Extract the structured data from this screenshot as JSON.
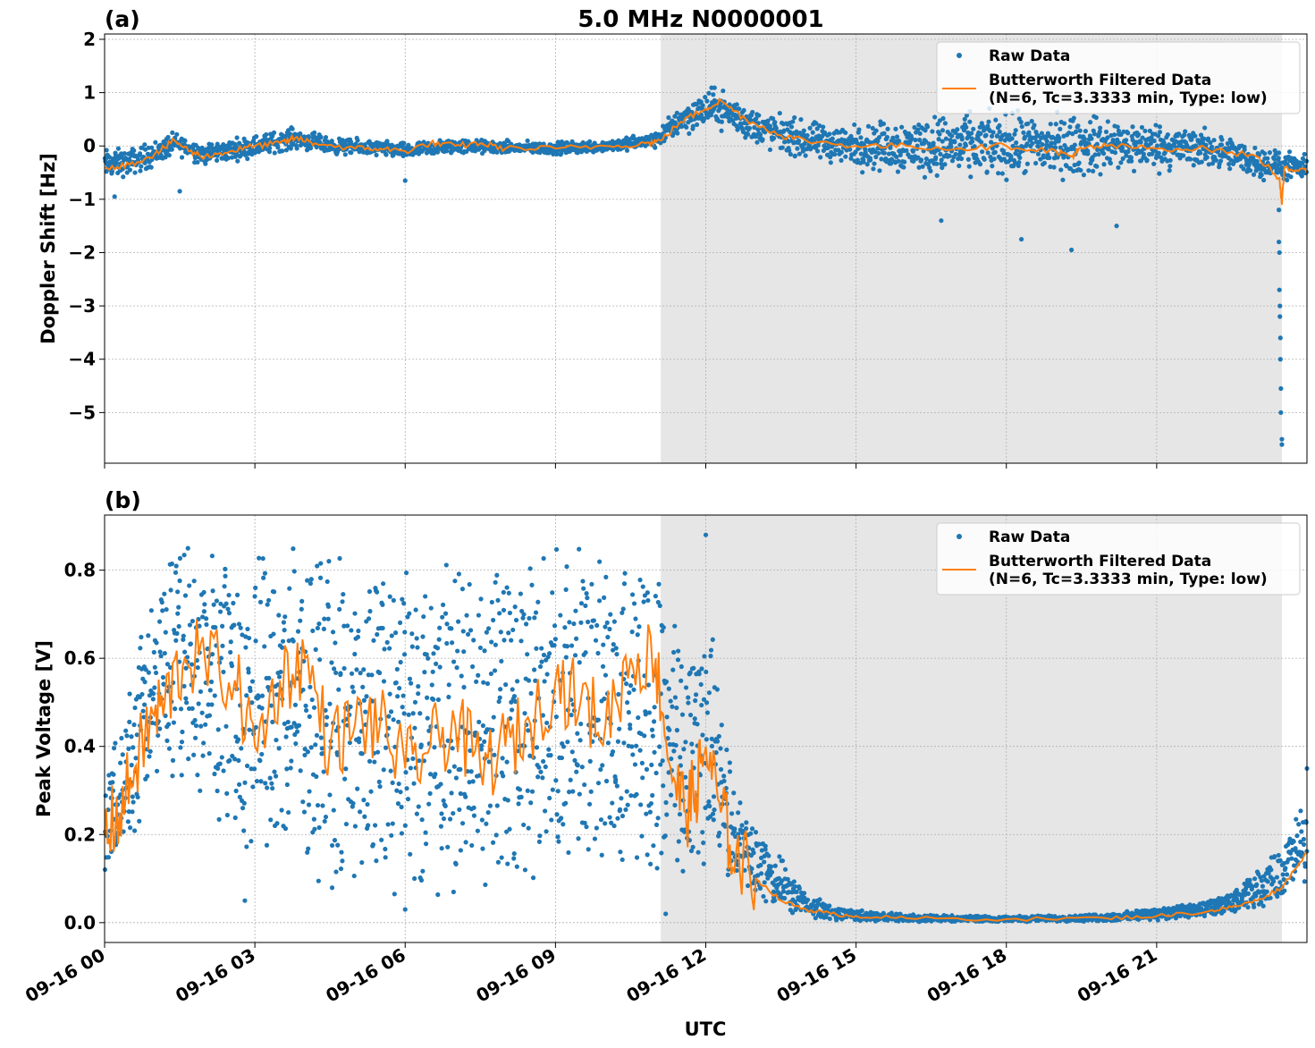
{
  "title": "5.0 MHz N0000001",
  "xlabel": "UTC",
  "colors": {
    "raw": "#1f77b4",
    "filtered": "#ff7f0e",
    "shade": "#e6e6e6",
    "grid": "#b0b0b0"
  },
  "chart_data": [
    {
      "type": "scatter",
      "panel_label": "(a)",
      "ylabel": "Doppler Shift [Hz]",
      "xlim_hours": [
        0,
        24
      ],
      "ylim": [
        -5.95,
        2.1
      ],
      "yticks": [
        -5,
        -4,
        -3,
        -2,
        -1,
        0,
        1,
        2
      ],
      "ytick_labels": [
        "−5",
        "−4",
        "−3",
        "−2",
        "−1",
        "0",
        "1",
        "2"
      ],
      "xticks_hours": [
        0,
        3,
        6,
        9,
        12,
        15,
        18,
        21
      ],
      "shaded_span_hours": [
        11.1,
        23.5
      ],
      "grid": true,
      "legend_position": "upper-right",
      "legend": [
        "Raw Data",
        "Butterworth Filtered Data",
        "(N=6, Tc=3.3333 min, Type: low)"
      ],
      "series": [
        {
          "name": "Raw Data",
          "band": [
            [
              0.0,
              -0.35,
              0.3
            ],
            [
              0.5,
              -0.3,
              0.25
            ],
            [
              1.0,
              -0.15,
              0.25
            ],
            [
              1.4,
              0.05,
              0.2
            ],
            [
              2.0,
              -0.15,
              0.2
            ],
            [
              3.0,
              0.0,
              0.2
            ],
            [
              3.8,
              0.15,
              0.2
            ],
            [
              4.5,
              0.0,
              0.15
            ],
            [
              5.5,
              -0.05,
              0.15
            ],
            [
              6.0,
              -0.1,
              0.15
            ],
            [
              7.0,
              0.0,
              0.15
            ],
            [
              8.0,
              -0.03,
              0.12
            ],
            [
              9.0,
              -0.05,
              0.12
            ],
            [
              10.0,
              0.0,
              0.12
            ],
            [
              11.0,
              0.1,
              0.15
            ],
            [
              11.5,
              0.5,
              0.3
            ],
            [
              12.2,
              0.75,
              0.35
            ],
            [
              13.0,
              0.35,
              0.35
            ],
            [
              14.0,
              0.1,
              0.35
            ],
            [
              15.0,
              0.0,
              0.4
            ],
            [
              16.0,
              0.0,
              0.55
            ],
            [
              17.0,
              0.0,
              0.6
            ],
            [
              18.0,
              0.0,
              0.6
            ],
            [
              19.0,
              0.0,
              0.6
            ],
            [
              20.0,
              0.0,
              0.55
            ],
            [
              21.0,
              0.0,
              0.45
            ],
            [
              22.0,
              -0.05,
              0.35
            ],
            [
              23.0,
              -0.3,
              0.3
            ],
            [
              24.0,
              -0.45,
              0.25
            ]
          ],
          "outliers": [
            [
              23.5,
              -5.6
            ],
            [
              23.5,
              -5.5
            ],
            [
              23.48,
              -5.0
            ],
            [
              23.48,
              -4.55
            ],
            [
              23.47,
              -4.0
            ],
            [
              23.47,
              -3.6
            ],
            [
              23.46,
              -3.2
            ],
            [
              23.46,
              -3.0
            ],
            [
              23.45,
              -2.7
            ],
            [
              23.45,
              -2.0
            ],
            [
              23.44,
              -1.8
            ],
            [
              23.44,
              -1.2
            ],
            [
              18.3,
              -1.75
            ],
            [
              19.3,
              -1.95
            ],
            [
              20.2,
              -1.5
            ],
            [
              16.7,
              -1.4
            ],
            [
              6.0,
              -0.65
            ],
            [
              1.5,
              -0.85
            ],
            [
              0.2,
              -0.95
            ]
          ]
        },
        {
          "name": "Butterworth Filtered Data",
          "x": [
            0,
            0.5,
            1.0,
            1.4,
            1.7,
            2.0,
            2.5,
            3.0,
            3.5,
            3.8,
            4.2,
            5.0,
            5.5,
            6.0,
            6.5,
            7.0,
            7.5,
            8.0,
            9.0,
            10.0,
            10.8,
            11.1,
            11.5,
            12.0,
            12.3,
            12.8,
            13.5,
            14.0,
            15.0,
            16.0,
            17.0,
            18.0,
            19.0,
            19.3,
            19.5,
            20.0,
            21.0,
            22.0,
            23.0,
            23.45,
            23.5,
            23.55,
            24.0
          ],
          "y": [
            -0.4,
            -0.35,
            -0.15,
            0.1,
            -0.1,
            -0.2,
            -0.1,
            0.0,
            0.05,
            0.15,
            0.05,
            -0.05,
            -0.05,
            -0.1,
            0.05,
            0.0,
            0.05,
            -0.05,
            -0.05,
            0.0,
            0.05,
            0.1,
            0.45,
            0.7,
            0.85,
            0.5,
            0.2,
            0.1,
            0.0,
            0.0,
            -0.05,
            0.0,
            -0.1,
            -0.2,
            -0.05,
            0.0,
            -0.05,
            -0.05,
            -0.2,
            -0.6,
            -1.1,
            -0.4,
            -0.5
          ]
        }
      ]
    },
    {
      "type": "scatter",
      "panel_label": "(b)",
      "ylabel": "Peak Voltage [V]",
      "xlim_hours": [
        0,
        24
      ],
      "ylim": [
        -0.045,
        0.925
      ],
      "yticks": [
        0.0,
        0.2,
        0.4,
        0.6,
        0.8
      ],
      "ytick_labels": [
        "0.0",
        "0.2",
        "0.4",
        "0.6",
        "0.8"
      ],
      "xticks_hours": [
        0,
        3,
        6,
        9,
        12,
        15,
        18,
        21
      ],
      "xtick_labels": [
        "09-16 00",
        "09-16 03",
        "09-16 06",
        "09-16 09",
        "09-16 12",
        "09-16 15",
        "09-16 18",
        "09-16 21"
      ],
      "shaded_span_hours": [
        11.1,
        23.5
      ],
      "grid": true,
      "legend_position": "upper-right",
      "legend": [
        "Raw Data",
        "Butterworth Filtered Data",
        "(N=6, Tc=3.3333 min, Type: low)"
      ],
      "series": [
        {
          "name": "Raw Data",
          "band": [
            [
              0.0,
              0.1,
              0.35
            ],
            [
              0.3,
              0.12,
              0.45
            ],
            [
              0.6,
              0.2,
              0.6
            ],
            [
              0.9,
              0.25,
              0.75
            ],
            [
              1.2,
              0.3,
              0.85
            ],
            [
              1.6,
              0.3,
              0.88
            ],
            [
              2.0,
              0.25,
              0.88
            ],
            [
              2.6,
              0.15,
              0.88
            ],
            [
              3.0,
              0.08,
              0.85
            ],
            [
              3.5,
              0.1,
              0.88
            ],
            [
              4.0,
              0.12,
              0.88
            ],
            [
              4.5,
              0.05,
              0.85
            ],
            [
              5.0,
              0.06,
              0.85
            ],
            [
              5.5,
              0.05,
              0.86
            ],
            [
              6.0,
              0.03,
              0.86
            ],
            [
              6.5,
              0.05,
              0.86
            ],
            [
              7.0,
              0.04,
              0.85
            ],
            [
              7.5,
              0.05,
              0.86
            ],
            [
              8.0,
              0.05,
              0.85
            ],
            [
              8.5,
              0.05,
              0.87
            ],
            [
              9.0,
              0.05,
              0.86
            ],
            [
              9.5,
              0.08,
              0.86
            ],
            [
              10.0,
              0.08,
              0.86
            ],
            [
              10.5,
              0.12,
              0.88
            ],
            [
              11.0,
              0.1,
              0.87
            ],
            [
              11.3,
              0.08,
              0.75
            ],
            [
              11.6,
              0.07,
              0.7
            ],
            [
              11.8,
              0.07,
              0.75
            ],
            [
              12.0,
              0.1,
              0.85
            ],
            [
              12.3,
              0.1,
              0.5
            ],
            [
              12.6,
              0.07,
              0.3
            ],
            [
              13.0,
              0.05,
              0.22
            ],
            [
              13.5,
              0.02,
              0.15
            ],
            [
              14.0,
              0.01,
              0.07
            ],
            [
              14.5,
              0.005,
              0.04
            ],
            [
              15.0,
              0.003,
              0.03
            ],
            [
              16.0,
              0.002,
              0.02
            ],
            [
              18.0,
              0.002,
              0.015
            ],
            [
              20.0,
              0.002,
              0.02
            ],
            [
              21.0,
              0.005,
              0.035
            ],
            [
              22.0,
              0.01,
              0.05
            ],
            [
              22.5,
              0.02,
              0.07
            ],
            [
              23.0,
              0.03,
              0.12
            ],
            [
              23.5,
              0.05,
              0.18
            ],
            [
              24.0,
              0.08,
              0.3
            ]
          ],
          "outliers": [
            [
              11.2,
              0.02
            ],
            [
              12.0,
              0.88
            ],
            [
              24.0,
              0.35
            ],
            [
              6.0,
              0.03
            ],
            [
              2.8,
              0.05
            ]
          ]
        },
        {
          "name": "Butterworth Filtered Data",
          "x": [
            0,
            0.3,
            0.6,
            0.9,
            1.2,
            1.6,
            2.0,
            2.6,
            3.0,
            3.5,
            4.0,
            4.5,
            5.0,
            5.5,
            6.0,
            6.5,
            7.0,
            7.5,
            8.0,
            8.5,
            9.0,
            9.5,
            10.0,
            10.5,
            11.0,
            11.3,
            11.6,
            11.8,
            12.0,
            12.3,
            12.6,
            13.0,
            13.5,
            14.0,
            14.5,
            15.0,
            16.0,
            18.0,
            20.0,
            21.0,
            22.0,
            22.5,
            23.0,
            23.5,
            24.0
          ],
          "y": [
            0.2,
            0.25,
            0.35,
            0.45,
            0.5,
            0.6,
            0.6,
            0.55,
            0.4,
            0.55,
            0.6,
            0.4,
            0.45,
            0.45,
            0.35,
            0.4,
            0.45,
            0.35,
            0.4,
            0.45,
            0.55,
            0.5,
            0.45,
            0.6,
            0.6,
            0.35,
            0.25,
            0.3,
            0.4,
            0.25,
            0.15,
            0.1,
            0.05,
            0.03,
            0.02,
            0.015,
            0.01,
            0.008,
            0.01,
            0.015,
            0.025,
            0.035,
            0.05,
            0.08,
            0.16
          ]
        }
      ]
    }
  ]
}
